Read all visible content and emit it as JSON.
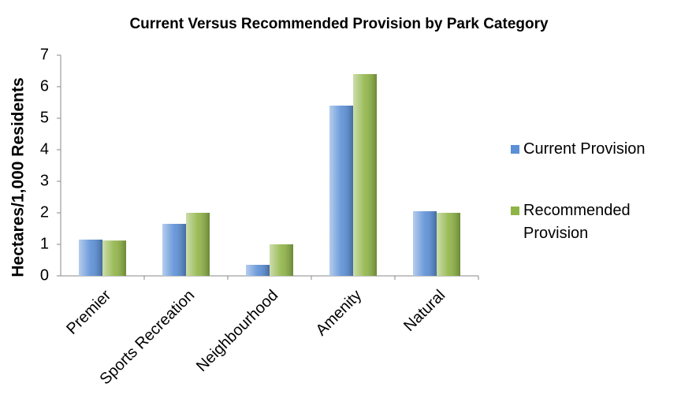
{
  "chart_data": {
    "type": "bar",
    "title": "Current Versus Recommended Provision by Park Category",
    "y_label": "Hectares/1,000 Residents",
    "categories": [
      "Premier",
      "Sports Recreation",
      "Neighbourhood",
      "Amenity",
      "Natural"
    ],
    "series": [
      {
        "name": "Current Provision",
        "color": "#5b8fd6",
        "values": [
          1.15,
          1.65,
          0.35,
          5.4,
          2.05
        ]
      },
      {
        "name": "Recommended Provision",
        "color": "#8fb446",
        "values": [
          1.12,
          2.0,
          1.0,
          6.4,
          2.0
        ]
      }
    ],
    "ylim": [
      0,
      7
    ],
    "yticks": [
      0,
      1,
      2,
      3,
      4,
      5,
      6,
      7
    ],
    "grid": false,
    "legend": "right"
  }
}
